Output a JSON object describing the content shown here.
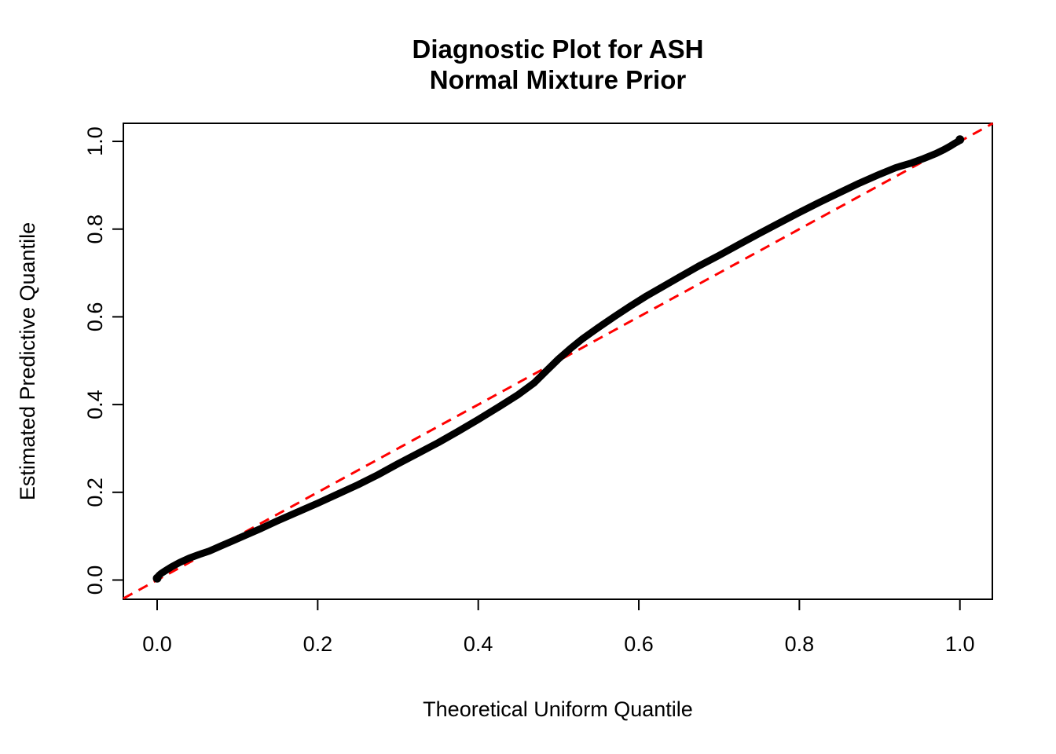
{
  "figure": {
    "background_color": "#ffffff",
    "foreground_color": "#000000"
  },
  "chart_data": {
    "type": "scatter",
    "title": "Diagnostic Plot for ASH\nNormal Mixture Prior",
    "title_lines": [
      "Diagnostic Plot for ASH",
      "Normal Mixture Prior"
    ],
    "xlabel": "Theoretical Uniform Quantile",
    "ylabel": "Estimated Predictive Quantile",
    "xlim": [
      -0.042,
      1.041
    ],
    "ylim": [
      -0.043,
      1.041
    ],
    "grid": false,
    "legend_position": "none",
    "x_ticks": {
      "values": [
        0.0,
        0.2,
        0.4,
        0.6,
        0.8,
        1.0
      ],
      "labels": [
        "0.0",
        "0.2",
        "0.4",
        "0.6",
        "0.8",
        "1.0"
      ]
    },
    "y_ticks": {
      "values": [
        0.0,
        0.2,
        0.4,
        0.6,
        0.8,
        1.0
      ],
      "labels": [
        "0.0",
        "0.2",
        "0.4",
        "0.6",
        "0.8",
        "1.0"
      ]
    },
    "series": [
      {
        "name": "estimated-predictive-quantiles",
        "type": "dense-point-curve",
        "color": "#000000",
        "points": [
          [
            0.0,
            0.004
          ],
          [
            0.002,
            0.01
          ],
          [
            0.005,
            0.015
          ],
          [
            0.01,
            0.021
          ],
          [
            0.018,
            0.03
          ],
          [
            0.028,
            0.04
          ],
          [
            0.04,
            0.05
          ],
          [
            0.052,
            0.058
          ],
          [
            0.065,
            0.066
          ],
          [
            0.08,
            0.078
          ],
          [
            0.095,
            0.09
          ],
          [
            0.11,
            0.102
          ],
          [
            0.13,
            0.118
          ],
          [
            0.15,
            0.135
          ],
          [
            0.175,
            0.155
          ],
          [
            0.2,
            0.175
          ],
          [
            0.225,
            0.196
          ],
          [
            0.25,
            0.217
          ],
          [
            0.275,
            0.24
          ],
          [
            0.3,
            0.265
          ],
          [
            0.325,
            0.289
          ],
          [
            0.35,
            0.313
          ],
          [
            0.375,
            0.339
          ],
          [
            0.4,
            0.366
          ],
          [
            0.425,
            0.394
          ],
          [
            0.45,
            0.423
          ],
          [
            0.47,
            0.45
          ],
          [
            0.485,
            0.477
          ],
          [
            0.5,
            0.504
          ],
          [
            0.515,
            0.528
          ],
          [
            0.53,
            0.55
          ],
          [
            0.55,
            0.576
          ],
          [
            0.57,
            0.601
          ],
          [
            0.59,
            0.625
          ],
          [
            0.61,
            0.648
          ],
          [
            0.63,
            0.669
          ],
          [
            0.65,
            0.69
          ],
          [
            0.675,
            0.716
          ],
          [
            0.7,
            0.74
          ],
          [
            0.725,
            0.765
          ],
          [
            0.75,
            0.79
          ],
          [
            0.775,
            0.814
          ],
          [
            0.8,
            0.838
          ],
          [
            0.825,
            0.861
          ],
          [
            0.85,
            0.883
          ],
          [
            0.875,
            0.905
          ],
          [
            0.9,
            0.925
          ],
          [
            0.92,
            0.94
          ],
          [
            0.94,
            0.951
          ],
          [
            0.955,
            0.961
          ],
          [
            0.97,
            0.972
          ],
          [
            0.98,
            0.981
          ],
          [
            0.988,
            0.989
          ],
          [
            0.994,
            0.996
          ],
          [
            0.998,
            1.0
          ],
          [
            1.0,
            1.004
          ]
        ]
      },
      {
        "name": "identity-reference-line",
        "type": "dashed-line",
        "color": "#FF0000",
        "from": [
          -0.042,
          -0.042
        ],
        "to": [
          1.041,
          1.041
        ]
      }
    ]
  }
}
